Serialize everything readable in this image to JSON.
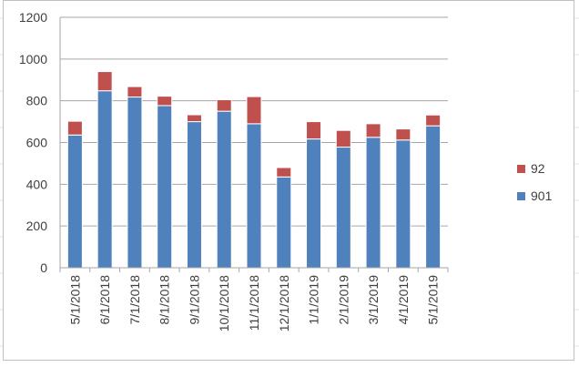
{
  "chart_data": {
    "type": "bar",
    "stacked": true,
    "categories": [
      "5/1/2018",
      "6/1/2018",
      "7/1/2018",
      "8/1/2018",
      "9/1/2018",
      "10/1/2018",
      "11/1/2018",
      "12/1/2018",
      "1/1/2019",
      "2/1/2019",
      "3/1/2019",
      "4/1/2019",
      "5/1/2019"
    ],
    "series": [
      {
        "name": "901",
        "color": "#4f81bd",
        "values": [
          636,
          848,
          818,
          777,
          700,
          750,
          690,
          435,
          617,
          578,
          625,
          612,
          680
        ]
      },
      {
        "name": "92",
        "color": "#c0504d",
        "values": [
          66,
          92,
          50,
          45,
          33,
          55,
          130,
          45,
          83,
          80,
          65,
          53,
          52
        ]
      }
    ],
    "yticks": [
      0,
      200,
      400,
      600,
      800,
      1000,
      1200
    ],
    "ylim": [
      0,
      1200
    ],
    "grid": true,
    "legend_position": "right",
    "legend_order": [
      "92",
      "901"
    ],
    "xlabel": "",
    "ylabel": "",
    "title": ""
  }
}
